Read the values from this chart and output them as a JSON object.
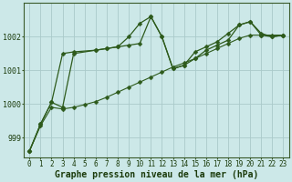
{
  "title": "Graphe pression niveau de la mer (hPa)",
  "background_color": "#cce8e8",
  "grid_color": "#aacaca",
  "line_color": "#2d5a1b",
  "x_ticks": [
    0,
    1,
    2,
    3,
    4,
    5,
    6,
    7,
    8,
    9,
    10,
    11,
    12,
    13,
    14,
    15,
    16,
    17,
    18,
    19,
    20,
    21,
    22,
    23
  ],
  "ylim": [
    998.4,
    1003.0
  ],
  "series1_x": [
    0,
    1,
    2,
    3,
    4,
    6,
    7,
    8,
    9,
    10,
    11,
    12,
    13,
    14,
    15,
    16,
    17,
    18,
    19,
    20,
    21,
    22,
    23
  ],
  "series1_y": [
    998.6,
    999.4,
    1000.05,
    999.9,
    1001.5,
    1001.6,
    1001.65,
    1001.7,
    1002.0,
    1002.4,
    1002.6,
    1002.0,
    1001.05,
    1001.15,
    1001.55,
    1001.7,
    1001.85,
    1002.1,
    1002.35,
    1002.45,
    1002.05,
    1002.0,
    1002.05
  ],
  "series2_x": [
    0,
    1,
    2,
    3,
    4,
    6,
    7,
    8,
    9,
    10,
    11,
    12,
    13,
    14,
    15,
    16,
    17,
    18,
    19,
    20,
    21,
    22,
    23
  ],
  "series2_y": [
    998.6,
    999.4,
    1000.05,
    1001.5,
    1001.55,
    1001.6,
    1001.65,
    1001.7,
    1001.75,
    1001.8,
    1002.6,
    1002.0,
    1001.05,
    1001.15,
    1001.35,
    1001.6,
    1001.75,
    1001.9,
    1002.35,
    1002.45,
    1002.1,
    1002.0,
    1002.05
  ],
  "series3_x": [
    0,
    1,
    2,
    3,
    4,
    5,
    6,
    7,
    8,
    9,
    10,
    11,
    12,
    13,
    14,
    15,
    16,
    17,
    18,
    19,
    20,
    21,
    22,
    23
  ],
  "series3_y": [
    998.6,
    999.35,
    999.9,
    999.85,
    999.9,
    999.98,
    1000.07,
    1000.2,
    1000.35,
    1000.5,
    1000.65,
    1000.8,
    1000.95,
    1001.1,
    1001.22,
    1001.35,
    1001.5,
    1001.65,
    1001.8,
    1001.95,
    1002.05,
    1002.05,
    1002.05,
    1002.05
  ],
  "yticks": [
    999,
    1000,
    1001,
    1002
  ],
  "title_fontsize": 7,
  "tick_fontsize": 5.5
}
